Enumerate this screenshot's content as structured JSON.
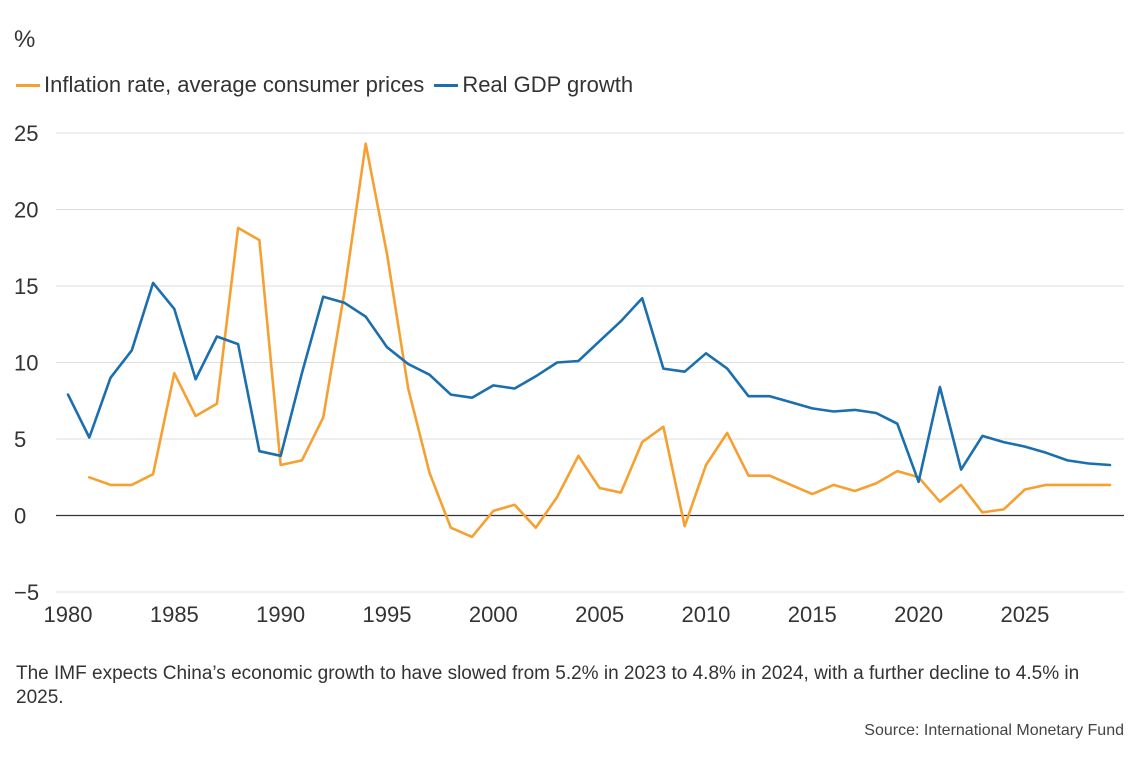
{
  "chart_data": {
    "type": "line",
    "unit_label": "%",
    "xlim": [
      1980,
      2029
    ],
    "ylim": [
      -5,
      25
    ],
    "yticks": [
      25,
      20,
      15,
      10,
      5,
      0,
      -5
    ],
    "ytick_labels": [
      "25",
      "20",
      "15",
      "10",
      "5",
      "0",
      "−5"
    ],
    "xticks": [
      1980,
      1985,
      1990,
      1995,
      2000,
      2005,
      2010,
      2015,
      2020,
      2025
    ],
    "xtick_labels": [
      "1980",
      "1985",
      "1990",
      "1995",
      "2000",
      "2005",
      "2010",
      "2015",
      "2020",
      "2025"
    ],
    "grid": true,
    "legend_position": "top-left",
    "series": [
      {
        "name": "Inflation rate, average consumer prices",
        "color": "#f5a031",
        "x": [
          1981,
          1982,
          1983,
          1984,
          1985,
          1986,
          1987,
          1988,
          1989,
          1990,
          1991,
          1992,
          1993,
          1994,
          1995,
          1996,
          1997,
          1998,
          1999,
          2000,
          2001,
          2002,
          2003,
          2004,
          2005,
          2006,
          2007,
          2008,
          2009,
          2010,
          2011,
          2012,
          2013,
          2014,
          2015,
          2016,
          2017,
          2018,
          2019,
          2020,
          2021,
          2022,
          2023,
          2024,
          2025,
          2026,
          2027,
          2028,
          2029
        ],
        "values": [
          2.5,
          2.0,
          2.0,
          2.7,
          9.3,
          6.5,
          7.3,
          18.8,
          18.0,
          3.3,
          3.6,
          6.4,
          14.6,
          24.3,
          17.1,
          8.3,
          2.8,
          -0.8,
          -1.4,
          0.3,
          0.7,
          -0.8,
          1.2,
          3.9,
          1.8,
          1.5,
          4.8,
          5.8,
          -0.7,
          3.3,
          5.4,
          2.6,
          2.6,
          2.0,
          1.4,
          2.0,
          1.6,
          2.1,
          2.9,
          2.5,
          0.9,
          2.0,
          0.2,
          0.4,
          1.7,
          2.0,
          2.0,
          2.0,
          2.0
        ]
      },
      {
        "name": "Real GDP growth",
        "color": "#1b6fae",
        "x": [
          1980,
          1981,
          1982,
          1983,
          1984,
          1985,
          1986,
          1987,
          1988,
          1989,
          1990,
          1991,
          1992,
          1993,
          1994,
          1995,
          1996,
          1997,
          1998,
          1999,
          2000,
          2001,
          2002,
          2003,
          2004,
          2005,
          2006,
          2007,
          2008,
          2009,
          2010,
          2011,
          2012,
          2013,
          2014,
          2015,
          2016,
          2017,
          2018,
          2019,
          2020,
          2021,
          2022,
          2023,
          2024,
          2025,
          2026,
          2027,
          2028,
          2029
        ],
        "values": [
          7.9,
          5.1,
          9.0,
          10.8,
          15.2,
          13.5,
          8.9,
          11.7,
          11.2,
          4.2,
          3.9,
          9.3,
          14.3,
          13.9,
          13.0,
          11.0,
          9.9,
          9.2,
          7.9,
          7.7,
          8.5,
          8.3,
          9.1,
          10.0,
          10.1,
          11.4,
          12.7,
          14.2,
          9.6,
          9.4,
          10.6,
          9.6,
          7.8,
          7.8,
          7.4,
          7.0,
          6.8,
          6.9,
          6.7,
          6.0,
          2.2,
          8.4,
          3.0,
          5.2,
          4.8,
          4.5,
          4.1,
          3.6,
          3.4,
          3.3
        ]
      }
    ],
    "caption": "The IMF expects China’s economic growth to have slowed from 5.2% in 2023 to 4.8% in 2024, with a further decline to 4.5% in 2025.",
    "source": "Source: International Monetary Fund"
  }
}
